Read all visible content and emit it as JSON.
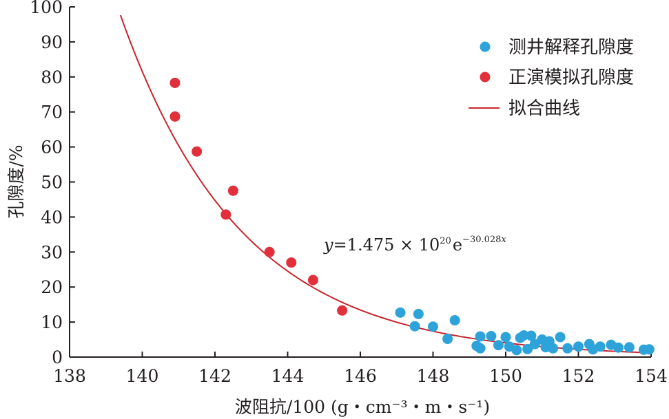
{
  "chart_data": {
    "type": "scatter",
    "xlabel": "波阻抗/100 (g・cm⁻³・m・s⁻¹)",
    "ylabel": "孔隙度/%",
    "xlim": [
      138,
      154
    ],
    "ylim": [
      0,
      100
    ],
    "xticks": [
      138,
      140,
      142,
      144,
      146,
      148,
      150,
      152,
      154
    ],
    "yticks": [
      0,
      10,
      20,
      30,
      40,
      50,
      60,
      70,
      80,
      90,
      100
    ],
    "grid": false,
    "legend_position": "top-right",
    "colors": {
      "logging": "#2ea3d9",
      "forward": "#e1303b",
      "fit": "#c8252c",
      "axis": "#231f20"
    },
    "series": [
      {
        "name": "测井解释孔隙度",
        "kind": "scatter",
        "color": "#2ea3d9",
        "points": [
          [
            147.1,
            12.7
          ],
          [
            147.6,
            12.3
          ],
          [
            147.5,
            8.8
          ],
          [
            148.0,
            8.7
          ],
          [
            148.6,
            10.5
          ],
          [
            148.4,
            5.2
          ],
          [
            149.2,
            3.2
          ],
          [
            149.3,
            2.5
          ],
          [
            149.3,
            5.9
          ],
          [
            149.6,
            6.0
          ],
          [
            149.8,
            3.4
          ],
          [
            150.0,
            5.7
          ],
          [
            150.1,
            3.0
          ],
          [
            150.3,
            2.0
          ],
          [
            150.4,
            5.5
          ],
          [
            150.5,
            6.2
          ],
          [
            150.6,
            2.3
          ],
          [
            150.7,
            6.1
          ],
          [
            150.8,
            3.7
          ],
          [
            151.0,
            5.0
          ],
          [
            151.1,
            2.8
          ],
          [
            151.2,
            4.5
          ],
          [
            151.3,
            2.5
          ],
          [
            151.5,
            5.7
          ],
          [
            151.7,
            2.5
          ],
          [
            152.0,
            3.0
          ],
          [
            152.3,
            3.7
          ],
          [
            152.4,
            2.2
          ],
          [
            152.6,
            3.0
          ],
          [
            152.9,
            3.5
          ],
          [
            153.1,
            2.7
          ],
          [
            153.4,
            2.8
          ],
          [
            153.8,
            2.1
          ],
          [
            153.95,
            2.2
          ]
        ]
      },
      {
        "name": "正演模拟孔隙度",
        "kind": "scatter",
        "color": "#e1303b",
        "points": [
          [
            140.9,
            78.3
          ],
          [
            140.9,
            68.7
          ],
          [
            141.5,
            58.7
          ],
          [
            142.3,
            40.7
          ],
          [
            142.5,
            47.5
          ],
          [
            143.5,
            30.0
          ],
          [
            144.1,
            27.0
          ],
          [
            144.7,
            22.0
          ],
          [
            145.5,
            13.3
          ]
        ]
      },
      {
        "name": "拟合曲线",
        "kind": "line",
        "color": "#c8252c",
        "x_range": [
          139.4,
          154.0
        ],
        "model": {
          "a": 1.475e+20,
          "b": -30.028,
          "x_scale": 0.01
        }
      }
    ],
    "annotation": {
      "y_var": "y",
      "body": "=1.475 × 10",
      "exp10": "20",
      "base": "e",
      "exp_e": "−30.028",
      "exp_var": "x"
    }
  }
}
